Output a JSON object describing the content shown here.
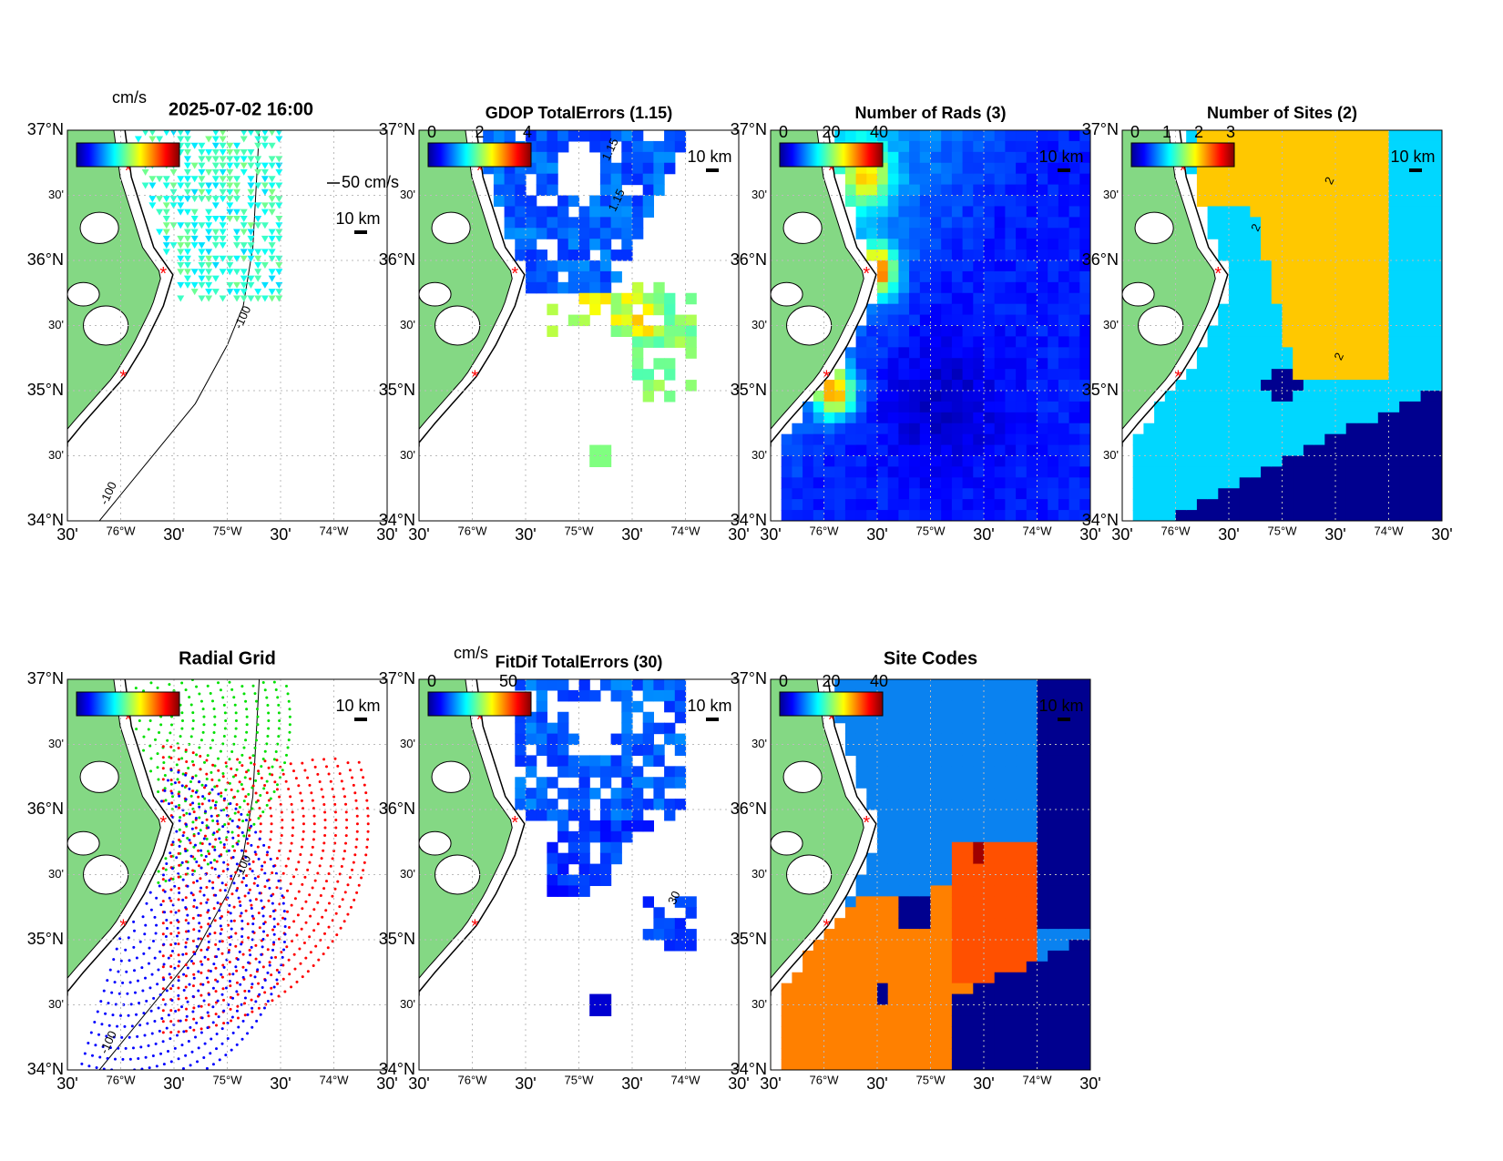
{
  "lat_ticks": [
    "37°N",
    "30'",
    "36°N",
    "30'",
    "35°N",
    "30'",
    "34°N"
  ],
  "lon_ticks": [
    "30'",
    "76°W",
    "30'",
    "75°W",
    "30'",
    "74°W",
    "30'"
  ],
  "panels": [
    {
      "title": "2025-07-02 16:00",
      "colorbar_unit": "cm/s",
      "scale_label": "10 km",
      "vector_label": "50 cm/s",
      "contour_labels": [
        "-100",
        "-100"
      ]
    },
    {
      "title": "GDOP TotalErrors (1.15)",
      "colorbar_ticks": [
        "0",
        "2",
        "4"
      ],
      "scale_label": "10 km",
      "contour_labels": [
        "1.15",
        "1.15"
      ]
    },
    {
      "title": "Number of Rads (3)",
      "colorbar_ticks": [
        "0",
        "20",
        "40"
      ],
      "scale_label": "10 km"
    },
    {
      "title": "Number of Sites (2)",
      "colorbar_ticks": [
        "0",
        "1",
        "2",
        "3"
      ],
      "scale_label": "10 km",
      "contour_labels": [
        "2",
        "2",
        "2"
      ]
    },
    {
      "title": "Radial Grid",
      "scale_label": "10 km",
      "contour_labels": [
        "-100",
        "-100"
      ]
    },
    {
      "title": "FitDif TotalErrors (30)",
      "colorbar_unit": "cm/s",
      "colorbar_ticks": [
        "0",
        "50"
      ],
      "scale_label": "10 km",
      "contour_labels": [
        "30"
      ]
    },
    {
      "title": "Site Codes",
      "colorbar_ticks": [
        "0",
        "20",
        "40"
      ],
      "scale_label": "10 km"
    }
  ]
}
